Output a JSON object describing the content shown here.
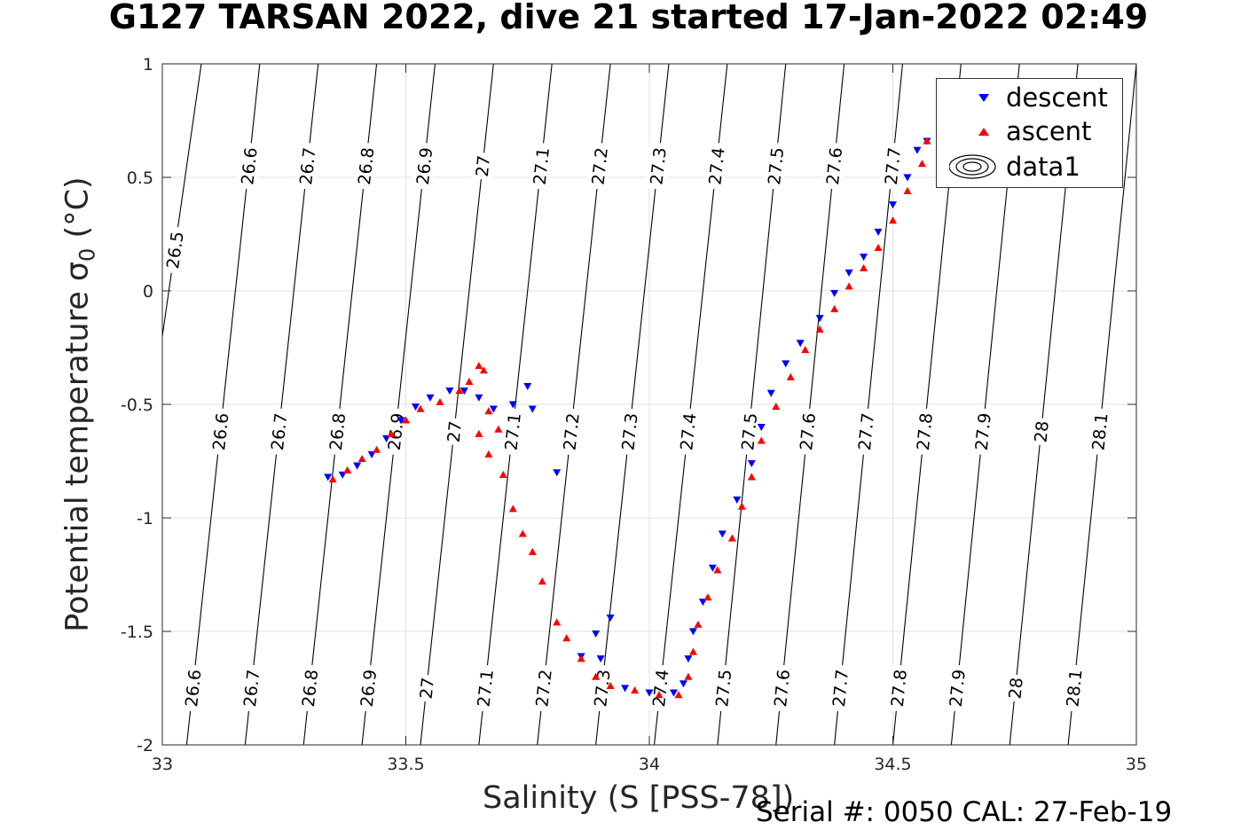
{
  "title": "G127 TARSAN 2022, dive 21 started 17-Jan-2022 02:49",
  "footer": "Serial #: 0050  CAL: 27-Feb-19",
  "chart_data": {
    "type": "scatter",
    "xlabel": "Salinity (S [PSS-78])",
    "ylabel_main": "Potential temperature σ",
    "ylabel_sub": "0",
    "ylabel_unit": " (°C)",
    "xlim": [
      33,
      35
    ],
    "ylim": [
      -2,
      1
    ],
    "xticks": [
      33,
      33.5,
      34,
      34.5,
      35
    ],
    "xtick_labels": [
      "33",
      "33.5",
      "34",
      "34.5",
      "35"
    ],
    "yticks": [
      -2,
      -1.5,
      -1,
      -0.5,
      0,
      0.5,
      1
    ],
    "ytick_labels": [
      "-2",
      "-1.5",
      "-1",
      "-0.5",
      "0",
      "0.5",
      "1"
    ],
    "grid": true,
    "legend_position": "top-right",
    "legend": [
      "descent",
      "ascent",
      "data1"
    ],
    "series": [
      {
        "name": "descent",
        "color": "#0000ff",
        "marker": "triangle-down",
        "points": [
          [
            33.34,
            -0.82
          ],
          [
            33.37,
            -0.81
          ],
          [
            33.4,
            -0.77
          ],
          [
            33.43,
            -0.72
          ],
          [
            33.46,
            -0.65
          ],
          [
            33.49,
            -0.57
          ],
          [
            33.52,
            -0.51
          ],
          [
            33.55,
            -0.47
          ],
          [
            33.59,
            -0.44
          ],
          [
            33.62,
            -0.44
          ],
          [
            33.65,
            -0.47
          ],
          [
            33.68,
            -0.52
          ],
          [
            33.72,
            -0.5
          ],
          [
            33.76,
            -0.52
          ],
          [
            33.75,
            -0.42
          ],
          [
            33.81,
            -0.8
          ],
          [
            33.86,
            -1.61
          ],
          [
            33.89,
            -1.51
          ],
          [
            33.92,
            -1.44
          ],
          [
            33.9,
            -1.62
          ],
          [
            33.95,
            -1.75
          ],
          [
            34.0,
            -1.77
          ],
          [
            34.05,
            -1.77
          ],
          [
            34.07,
            -1.73
          ],
          [
            34.08,
            -1.62
          ],
          [
            34.09,
            -1.5
          ],
          [
            34.11,
            -1.37
          ],
          [
            34.13,
            -1.22
          ],
          [
            34.15,
            -1.07
          ],
          [
            34.18,
            -0.92
          ],
          [
            34.21,
            -0.76
          ],
          [
            34.23,
            -0.6
          ],
          [
            34.25,
            -0.45
          ],
          [
            34.28,
            -0.32
          ],
          [
            34.31,
            -0.23
          ],
          [
            34.35,
            -0.12
          ],
          [
            34.38,
            -0.01
          ],
          [
            34.41,
            0.08
          ],
          [
            34.44,
            0.15
          ],
          [
            34.47,
            0.26
          ],
          [
            34.5,
            0.38
          ],
          [
            34.53,
            0.5
          ],
          [
            34.55,
            0.62
          ],
          [
            34.57,
            0.66
          ]
        ]
      },
      {
        "name": "ascent",
        "color": "#ff0000",
        "marker": "triangle-up",
        "points": [
          [
            33.35,
            -0.83
          ],
          [
            33.38,
            -0.79
          ],
          [
            33.41,
            -0.74
          ],
          [
            33.44,
            -0.7
          ],
          [
            33.47,
            -0.63
          ],
          [
            33.5,
            -0.57
          ],
          [
            33.53,
            -0.52
          ],
          [
            33.57,
            -0.49
          ],
          [
            33.61,
            -0.44
          ],
          [
            33.63,
            -0.4
          ],
          [
            33.65,
            -0.33
          ],
          [
            33.66,
            -0.35
          ],
          [
            33.67,
            -0.53
          ],
          [
            33.65,
            -0.63
          ],
          [
            33.69,
            -0.61
          ],
          [
            33.67,
            -0.72
          ],
          [
            33.7,
            -0.81
          ],
          [
            33.72,
            -0.96
          ],
          [
            33.74,
            -1.07
          ],
          [
            33.76,
            -1.15
          ],
          [
            33.78,
            -1.28
          ],
          [
            33.81,
            -1.46
          ],
          [
            33.83,
            -1.53
          ],
          [
            33.86,
            -1.62
          ],
          [
            33.89,
            -1.7
          ],
          [
            33.92,
            -1.74
          ],
          [
            33.97,
            -1.76
          ],
          [
            34.02,
            -1.78
          ],
          [
            34.06,
            -1.78
          ],
          [
            34.08,
            -1.7
          ],
          [
            34.09,
            -1.59
          ],
          [
            34.1,
            -1.47
          ],
          [
            34.12,
            -1.35
          ],
          [
            34.14,
            -1.23
          ],
          [
            34.17,
            -1.09
          ],
          [
            34.19,
            -0.95
          ],
          [
            34.21,
            -0.82
          ],
          [
            34.23,
            -0.66
          ],
          [
            34.26,
            -0.51
          ],
          [
            34.29,
            -0.38
          ],
          [
            34.32,
            -0.26
          ],
          [
            34.35,
            -0.17
          ],
          [
            34.38,
            -0.08
          ],
          [
            34.41,
            0.02
          ],
          [
            34.44,
            0.1
          ],
          [
            34.47,
            0.19
          ],
          [
            34.5,
            0.31
          ],
          [
            34.53,
            0.44
          ],
          [
            34.56,
            0.56
          ],
          [
            34.57,
            0.66
          ]
        ]
      }
    ],
    "contours": [
      {
        "label": "26.5",
        "top_label_s": null,
        "s_bottom": 32.88,
        "s_top": 33.08
      },
      {
        "label": "26.6",
        "s_bottom": 33.05,
        "s_top": 33.2
      },
      {
        "label": "26.7",
        "s_bottom": 33.17,
        "s_top": 33.32
      },
      {
        "label": "26.8",
        "s_bottom": 33.29,
        "s_top": 33.44
      },
      {
        "label": "26.9",
        "s_bottom": 33.41,
        "s_top": 33.56
      },
      {
        "label": "27",
        "s_bottom": 33.53,
        "s_top": 33.68
      },
      {
        "label": "27.1",
        "s_bottom": 33.65,
        "s_top": 33.8
      },
      {
        "label": "27.2",
        "s_bottom": 33.77,
        "s_top": 33.92
      },
      {
        "label": "27.3",
        "s_bottom": 33.89,
        "s_top": 34.04
      },
      {
        "label": "27.4",
        "s_bottom": 34.01,
        "s_top": 34.16
      },
      {
        "label": "27.5",
        "s_bottom": 34.14,
        "s_top": 34.28
      },
      {
        "label": "27.6",
        "s_bottom": 34.26,
        "s_top": 34.4
      },
      {
        "label": "27.7",
        "s_bottom": 34.38,
        "s_top": 34.52
      },
      {
        "label": "27.8",
        "s_bottom": 34.5,
        "s_top": 34.64
      },
      {
        "label": "27.9",
        "s_bottom": 34.62,
        "s_top": 34.76
      },
      {
        "label": "28",
        "s_bottom": 34.74,
        "s_top": 34.88
      },
      {
        "label": "28.1",
        "s_bottom": 34.86,
        "s_top": 35.0
      }
    ],
    "contour_label_rows": [
      {
        "y": 0.55,
        "labels": [
          "26.6",
          "26.7",
          "26.8",
          "26.9",
          "27",
          "27.1",
          "27.2",
          "27.3",
          "27.4",
          "27.5",
          "27.6",
          "27.7"
        ]
      },
      {
        "y": -0.62,
        "labels": [
          "26.6",
          "26.7",
          "26.8",
          "26.9",
          "27",
          "27.1",
          "27.2",
          "27.3",
          "27.4",
          "27.5",
          "27.6",
          "27.7",
          "27.8",
          "27.9",
          "28",
          "28.1"
        ]
      },
      {
        "y": -1.75,
        "labels": [
          "26.6",
          "26.7",
          "26.8",
          "26.9",
          "27",
          "27.1",
          "27.2",
          "27.3",
          "27.4",
          "27.5",
          "27.6",
          "27.7",
          "27.8",
          "27.9",
          "28",
          "28.1"
        ]
      }
    ],
    "extra_label": {
      "label": "26.5",
      "y": 0.18
    }
  }
}
